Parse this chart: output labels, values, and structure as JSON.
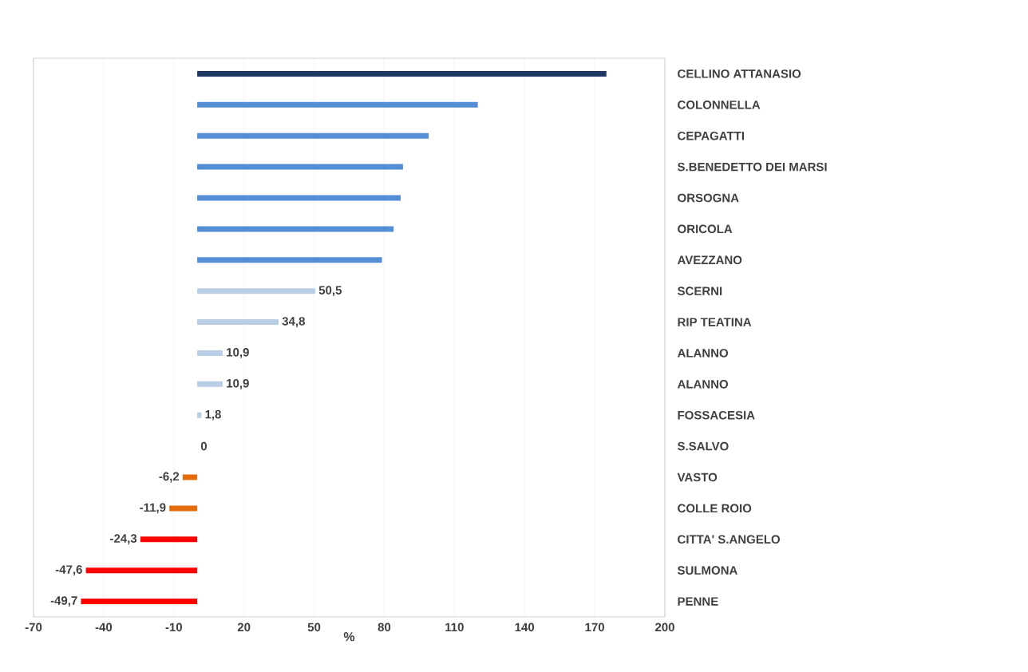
{
  "chart_data": {
    "type": "bar",
    "orientation": "horizontal",
    "xlabel": "%",
    "categories": [
      "CELLINO ATTANASIO",
      "COLONNELLA",
      "CEPAGATTI",
      "S.BENEDETTO DEI MARSI",
      "ORSOGNA",
      "ORICOLA",
      "AVEZZANO",
      "SCERNI",
      "RIP TEATINA",
      "ALANNO",
      "ALANNO",
      "FOSSACESIA",
      "S.SALVO",
      "VASTO",
      "COLLE ROIO",
      "CITTA' S.ANGELO",
      "SULMONA",
      "PENNE"
    ],
    "values": [
      175,
      120,
      99,
      88,
      87,
      84,
      79,
      50.5,
      34.8,
      10.9,
      10.9,
      1.8,
      0,
      -6.2,
      -11.9,
      -24.3,
      -47.6,
      -49.7
    ],
    "colors": [
      "#1f3864",
      "#558ed5",
      "#558ed5",
      "#558ed5",
      "#558ed5",
      "#558ed5",
      "#558ed5",
      "#b9cde5",
      "#b9cde5",
      "#b9cde5",
      "#b9cde5",
      "#b9cde5",
      "#b9cde5",
      "#e46c0a",
      "#e46c0a",
      "#ff0000",
      "#ff0000",
      "#ff0000"
    ],
    "value_labels": [
      null,
      null,
      null,
      null,
      null,
      null,
      null,
      "50,5",
      "34,8",
      "10,9",
      "10,9",
      "1,8",
      "0",
      "-6,2",
      "-11,9",
      "-24,3",
      "-47,6",
      "-49,7"
    ],
    "xlim": [
      -70,
      200
    ],
    "xticks": [
      -70,
      -40,
      -10,
      20,
      50,
      80,
      110,
      140,
      170,
      200
    ],
    "grid": "x"
  }
}
